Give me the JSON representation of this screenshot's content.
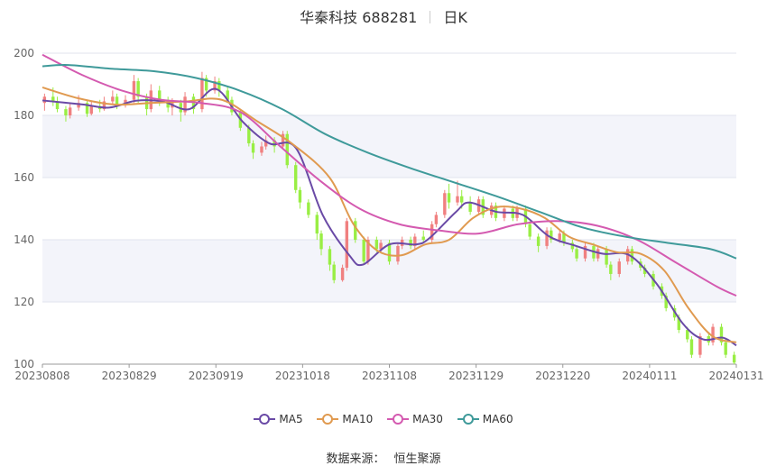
{
  "header": {
    "stock_name": "华秦科技 688281",
    "period": "日K"
  },
  "source": {
    "label": "数据来源：",
    "value": "恒生聚源"
  },
  "colors": {
    "up": "#f08080",
    "down": "#99ee44",
    "ma5": "#6a4aa6",
    "ma10": "#e09a50",
    "ma30": "#d45ab0",
    "ma60": "#3f9a9a",
    "band": "#f3f4fa",
    "grid": "#e0e3ee",
    "axis": "#666666"
  },
  "chart_data": {
    "type": "candlestick",
    "ylim": [
      100,
      200
    ],
    "yticks": [
      100,
      120,
      140,
      160,
      180,
      200
    ],
    "xtick_labels": [
      "20230808",
      "20230829",
      "20230919",
      "20231018",
      "20231108",
      "20231129",
      "20231220",
      "20240111",
      "20240131"
    ],
    "grid": true,
    "legend_position": "bottom",
    "candles": [
      [
        184.0,
        186.0,
        181.5,
        187.0
      ],
      [
        186.0,
        184.5,
        183.0,
        189.0
      ],
      [
        184.5,
        182.0,
        181.0,
        186.0
      ],
      [
        182.0,
        180.0,
        178.0,
        183.0
      ],
      [
        180.0,
        182.5,
        179.0,
        184.0
      ],
      [
        182.5,
        184.0,
        181.5,
        186.5
      ],
      [
        184.0,
        180.5,
        179.5,
        185.0
      ],
      [
        180.5,
        183.0,
        180.0,
        184.5
      ],
      [
        183.0,
        182.0,
        181.0,
        185.0
      ],
      [
        182.0,
        184.5,
        181.5,
        186.0
      ],
      [
        184.5,
        186.0,
        183.5,
        188.0
      ],
      [
        186.0,
        183.5,
        182.0,
        187.0
      ],
      [
        183.5,
        185.0,
        182.5,
        186.5
      ],
      [
        185.0,
        191.0,
        184.0,
        193.0
      ],
      [
        191.0,
        186.0,
        184.0,
        192.0
      ],
      [
        186.0,
        182.0,
        180.0,
        187.0
      ],
      [
        182.0,
        188.0,
        181.0,
        190.0
      ],
      [
        188.0,
        185.0,
        183.0,
        189.5
      ],
      [
        185.0,
        182.5,
        181.0,
        186.0
      ],
      [
        182.5,
        184.0,
        180.0,
        185.5
      ],
      [
        184.0,
        181.0,
        178.0,
        185.0
      ],
      [
        181.0,
        186.0,
        180.0,
        187.5
      ],
      [
        186.0,
        182.0,
        180.5,
        187.0
      ],
      [
        182.0,
        192.0,
        181.0,
        194.0
      ],
      [
        192.0,
        188.0,
        186.0,
        193.0
      ],
      [
        188.0,
        191.0,
        187.0,
        192.5
      ],
      [
        191.0,
        188.0,
        186.0,
        192.0
      ],
      [
        188.0,
        185.0,
        184.0,
        189.5
      ],
      [
        185.0,
        181.0,
        180.0,
        186.0
      ],
      [
        181.0,
        176.0,
        175.0,
        182.0
      ],
      [
        176.0,
        171.0,
        170.0,
        177.0
      ],
      [
        171.0,
        168.0,
        166.0,
        172.0
      ],
      [
        168.0,
        170.0,
        167.0,
        171.5
      ],
      [
        170.0,
        172.0,
        169.0,
        173.5
      ],
      [
        172.0,
        170.0,
        168.0,
        173.0
      ],
      [
        170.0,
        174.0,
        169.0,
        175.0
      ],
      [
        174.0,
        164.0,
        163.0,
        175.0
      ],
      [
        164.0,
        156.0,
        155.0,
        165.0
      ],
      [
        156.0,
        152.0,
        150.0,
        157.0
      ],
      [
        152.0,
        148.0,
        147.0,
        153.0
      ],
      [
        148.0,
        142.0,
        140.0,
        149.0
      ],
      [
        142.0,
        137.0,
        135.0,
        143.0
      ],
      [
        137.0,
        132.0,
        130.0,
        138.0
      ],
      [
        132.0,
        127.0,
        126.0,
        133.0
      ],
      [
        127.0,
        131.0,
        126.5,
        132.0
      ],
      [
        131.0,
        146.0,
        130.0,
        147.0
      ],
      [
        146.0,
        140.0,
        139.0,
        147.0
      ],
      [
        140.0,
        133.0,
        132.0,
        141.0
      ],
      [
        133.0,
        140.0,
        132.0,
        141.0
      ],
      [
        140.0,
        137.0,
        136.0,
        141.0
      ],
      [
        137.0,
        139.0,
        136.0,
        140.0
      ],
      [
        139.0,
        133.0,
        132.0,
        140.0
      ],
      [
        133.0,
        138.0,
        132.0,
        139.0
      ],
      [
        138.0,
        140.0,
        137.0,
        141.0
      ],
      [
        140.0,
        138.0,
        137.0,
        141.0
      ],
      [
        138.0,
        141.0,
        137.0,
        142.0
      ],
      [
        141.0,
        140.0,
        139.0,
        143.0
      ],
      [
        140.0,
        145.0,
        139.0,
        146.0
      ],
      [
        145.0,
        148.0,
        144.0,
        149.0
      ],
      [
        148.0,
        155.0,
        147.0,
        156.0
      ],
      [
        155.0,
        152.0,
        150.0,
        158.0
      ],
      [
        152.0,
        154.0,
        151.0,
        159.0
      ],
      [
        154.0,
        152.0,
        150.0,
        156.0
      ],
      [
        152.0,
        149.0,
        148.0,
        154.0
      ],
      [
        149.0,
        153.0,
        148.0,
        154.0
      ],
      [
        153.0,
        148.0,
        147.0,
        154.0
      ],
      [
        148.0,
        151.0,
        147.0,
        152.0
      ],
      [
        151.0,
        147.0,
        146.0,
        152.0
      ],
      [
        147.0,
        150.0,
        146.0,
        151.0
      ],
      [
        150.0,
        147.0,
        146.0,
        151.0
      ],
      [
        147.0,
        150.0,
        146.0,
        151.0
      ],
      [
        150.0,
        145.0,
        144.0,
        151.0
      ],
      [
        145.0,
        141.0,
        140.0,
        146.0
      ],
      [
        141.0,
        138.0,
        136.0,
        142.0
      ],
      [
        138.0,
        143.0,
        137.0,
        144.0
      ],
      [
        143.0,
        140.0,
        139.0,
        144.0
      ],
      [
        140.0,
        142.0,
        139.0,
        143.0
      ],
      [
        142.0,
        139.0,
        138.0,
        143.0
      ],
      [
        139.0,
        137.0,
        136.0,
        140.0
      ],
      [
        137.0,
        134.0,
        133.0,
        138.0
      ],
      [
        134.0,
        138.0,
        133.0,
        139.0
      ],
      [
        138.0,
        134.0,
        133.0,
        139.0
      ],
      [
        134.0,
        137.0,
        133.0,
        138.0
      ],
      [
        137.0,
        132.0,
        131.0,
        138.0
      ],
      [
        132.0,
        129.0,
        127.0,
        133.0
      ],
      [
        129.0,
        133.0,
        128.0,
        134.0
      ],
      [
        133.0,
        137.0,
        132.0,
        138.0
      ],
      [
        137.0,
        133.0,
        132.0,
        138.0
      ],
      [
        133.0,
        131.0,
        130.0,
        134.0
      ],
      [
        131.0,
        129.0,
        128.0,
        132.0
      ],
      [
        129.0,
        125.0,
        124.0,
        130.0
      ],
      [
        125.0,
        122.0,
        121.0,
        126.0
      ],
      [
        122.0,
        118.0,
        117.0,
        123.0
      ],
      [
        118.0,
        115.0,
        114.0,
        119.0
      ],
      [
        115.0,
        111.0,
        110.0,
        116.0
      ],
      [
        111.0,
        108.0,
        107.0,
        112.0
      ],
      [
        108.0,
        103.0,
        102.0,
        109.0
      ],
      [
        103.0,
        109.0,
        102.0,
        110.0
      ],
      [
        109.0,
        107.0,
        106.0,
        110.0
      ],
      [
        107.0,
        112.0,
        106.0,
        113.0
      ],
      [
        112.0,
        107.0,
        106.0,
        113.0
      ],
      [
        107.0,
        103.0,
        102.0,
        108.0
      ],
      [
        103.0,
        100.5,
        100.0,
        104.0
      ]
    ],
    "series": [
      {
        "name": "MA5",
        "key": "ma5",
        "points": [
          [
            0,
            184.8
          ],
          [
            6,
            183.5
          ],
          [
            10,
            182.5
          ],
          [
            14,
            184.7
          ],
          [
            18,
            184.5
          ],
          [
            22,
            182.0
          ],
          [
            26,
            188.5
          ],
          [
            30,
            178.0
          ],
          [
            34,
            171.0
          ],
          [
            38,
            169.5
          ],
          [
            42,
            148.0
          ],
          [
            46,
            135.0
          ],
          [
            48,
            132.0
          ],
          [
            52,
            138.5
          ],
          [
            56,
            138.5
          ],
          [
            58,
            140.5
          ],
          [
            62,
            149.0
          ],
          [
            64,
            152.0
          ],
          [
            68,
            149.0
          ],
          [
            72,
            148.0
          ],
          [
            76,
            141.0
          ],
          [
            80,
            138.0
          ],
          [
            84,
            135.5
          ],
          [
            88,
            135.0
          ],
          [
            92,
            126.0
          ],
          [
            96,
            113.0
          ],
          [
            99,
            108.0
          ],
          [
            102,
            108.5
          ],
          [
            104,
            106.0
          ]
        ]
      },
      {
        "name": "MA10",
        "key": "ma10",
        "points": [
          [
            0,
            189.0
          ],
          [
            6,
            185.5
          ],
          [
            12,
            183.5
          ],
          [
            18,
            184.0
          ],
          [
            24,
            184.5
          ],
          [
            30,
            185.0
          ],
          [
            36,
            178.0
          ],
          [
            42,
            170.5
          ],
          [
            48,
            160.0
          ],
          [
            52,
            145.0
          ],
          [
            56,
            136.5
          ],
          [
            60,
            135.0
          ],
          [
            64,
            138.5
          ],
          [
            68,
            140.0
          ],
          [
            72,
            147.0
          ],
          [
            76,
            150.5
          ],
          [
            80,
            150.0
          ],
          [
            84,
            147.0
          ],
          [
            88,
            141.0
          ],
          [
            92,
            138.5
          ],
          [
            96,
            136.0
          ],
          [
            100,
            135.5
          ],
          [
            104,
            130.0
          ],
          [
            108,
            118.0
          ],
          [
            112,
            109.0
          ],
          [
            116,
            107.0
          ]
        ]
      },
      {
        "name": "MA30",
        "key": "ma30",
        "points": [
          [
            0,
            199.5
          ],
          [
            8,
            193.0
          ],
          [
            16,
            188.0
          ],
          [
            24,
            185.0
          ],
          [
            32,
            184.0
          ],
          [
            40,
            181.0
          ],
          [
            48,
            170.0
          ],
          [
            56,
            159.0
          ],
          [
            64,
            150.0
          ],
          [
            72,
            145.0
          ],
          [
            80,
            143.0
          ],
          [
            88,
            142.0
          ],
          [
            96,
            145.0
          ],
          [
            104,
            146.0
          ],
          [
            112,
            144.5
          ],
          [
            120,
            140.0
          ],
          [
            128,
            132.5
          ],
          [
            136,
            125.0
          ],
          [
            140,
            122.0
          ]
        ]
      },
      {
        "name": "MA60",
        "key": "ma60",
        "points": [
          [
            0,
            195.8
          ],
          [
            6,
            196.2
          ],
          [
            16,
            195.0
          ],
          [
            26,
            194.2
          ],
          [
            36,
            192.0
          ],
          [
            46,
            188.0
          ],
          [
            56,
            182.0
          ],
          [
            66,
            174.0
          ],
          [
            76,
            168.0
          ],
          [
            86,
            163.0
          ],
          [
            96,
            158.5
          ],
          [
            106,
            154.0
          ],
          [
            116,
            149.0
          ],
          [
            126,
            144.0
          ],
          [
            136,
            141.0
          ],
          [
            146,
            139.0
          ],
          [
            156,
            137.0
          ],
          [
            162,
            134.0
          ]
        ]
      }
    ]
  }
}
